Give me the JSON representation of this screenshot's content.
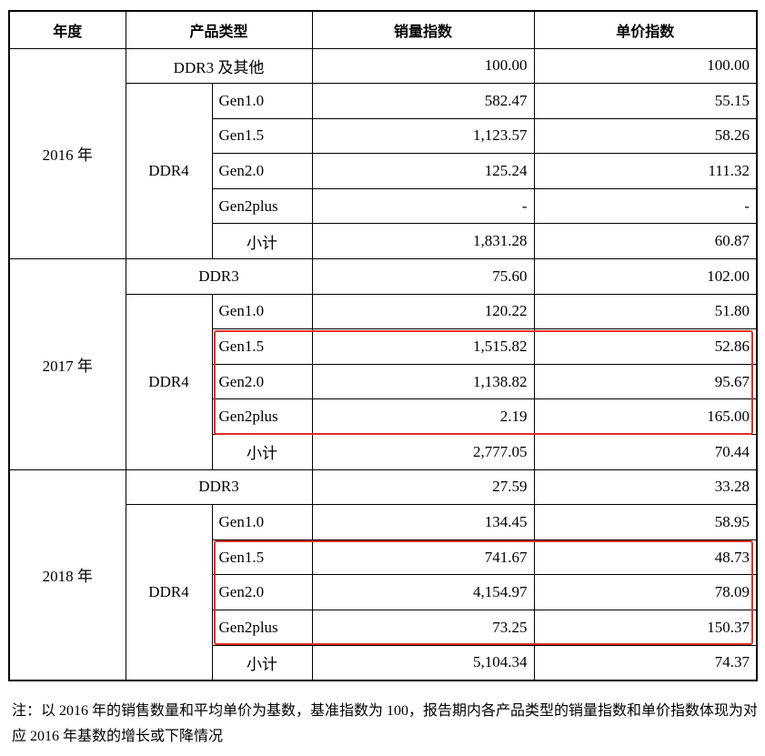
{
  "header": {
    "year": "年度",
    "product_type": "产品类型",
    "sales_index": "销量指数",
    "price_index": "单价指数"
  },
  "years": [
    {
      "year": "2016 年",
      "first_label": "DDR3 及其他",
      "first_sales": "100.00",
      "first_price": "100.00",
      "group": "DDR4",
      "rows": [
        {
          "type": "Gen1.0",
          "sales": "582.47",
          "price": "55.15"
        },
        {
          "type": "Gen1.5",
          "sales": "1,123.57",
          "price": "58.26"
        },
        {
          "type": "Gen2.0",
          "sales": "125.24",
          "price": "111.32"
        },
        {
          "type": "Gen2plus",
          "sales": "-",
          "price": "-"
        }
      ],
      "subtotal_label": "小计",
      "subtotal_sales": "1,831.28",
      "subtotal_price": "60.87"
    },
    {
      "year": "2017 年",
      "first_label": "DDR3",
      "first_sales": "75.60",
      "first_price": "102.00",
      "group": "DDR4",
      "rows": [
        {
          "type": "Gen1.0",
          "sales": "120.22",
          "price": "51.80"
        },
        {
          "type": "Gen1.5",
          "sales": "1,515.82",
          "price": "52.86"
        },
        {
          "type": "Gen2.0",
          "sales": "1,138.82",
          "price": "95.67"
        },
        {
          "type": "Gen2plus",
          "sales": "2.19",
          "price": "165.00"
        }
      ],
      "subtotal_label": "小计",
      "subtotal_sales": "2,777.05",
      "subtotal_price": "70.44"
    },
    {
      "year": "2018 年",
      "first_label": "DDR3",
      "first_sales": "27.59",
      "first_price": "33.28",
      "group": "DDR4",
      "rows": [
        {
          "type": "Gen1.0",
          "sales": "134.45",
          "price": "58.95"
        },
        {
          "type": "Gen1.5",
          "sales": "741.67",
          "price": "48.73"
        },
        {
          "type": "Gen2.0",
          "sales": "4,154.97",
          "price": "78.09"
        },
        {
          "type": "Gen2plus",
          "sales": "73.25",
          "price": "150.37"
        }
      ],
      "subtotal_label": "小计",
      "subtotal_sales": "5,104.34",
      "subtotal_price": "74.37"
    }
  ],
  "highlight_color": "#e0302a",
  "note": "注：以 2016 年的销售数量和平均单价为基数，基准指数为 100，报告期内各产品类型的销量指数和单价指数体现为对应 2016 年基数的增长或下降情况"
}
